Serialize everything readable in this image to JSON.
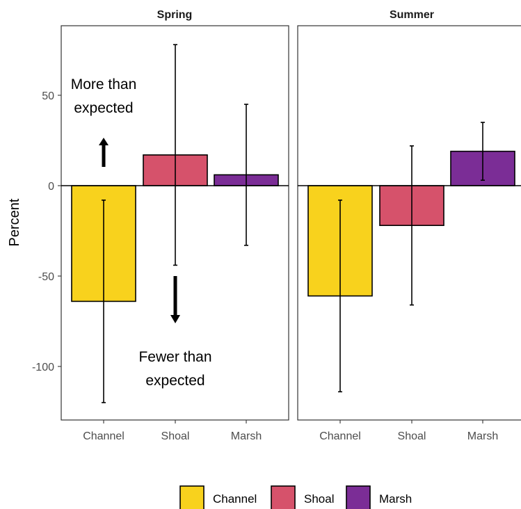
{
  "chart_data": {
    "type": "bar",
    "ylabel": "Percent",
    "xlabel": "",
    "ylim": [
      -130,
      88
    ],
    "yticks": [
      -100,
      -50,
      0,
      50
    ],
    "categories": [
      "Channel",
      "Shoal",
      "Marsh"
    ],
    "colors": {
      "Channel": "#f8d21d",
      "Shoal": "#d6526b",
      "Marsh": "#7b2d96"
    },
    "panels": [
      {
        "title": "Spring",
        "values": [
          -64,
          17,
          6
        ],
        "error_low": [
          -120,
          -44,
          -33
        ],
        "error_high": [
          -8,
          78,
          45
        ]
      },
      {
        "title": "Summer",
        "values": [
          -61,
          -22,
          19
        ],
        "error_low": [
          -114,
          -66,
          3
        ],
        "error_high": [
          -8,
          22,
          35
        ]
      }
    ],
    "annotations": {
      "more_line1": "More than",
      "more_line2": "expected",
      "fewer_line1": "Fewer than",
      "fewer_line2": "expected"
    },
    "legend": {
      "position": "bottom",
      "entries": [
        "Channel",
        "Shoal",
        "Marsh"
      ]
    },
    "grid": false
  }
}
